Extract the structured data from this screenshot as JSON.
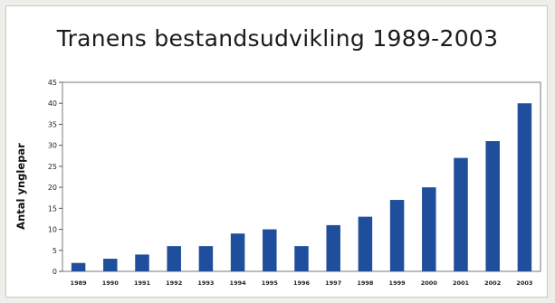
{
  "chart_data": {
    "type": "bar",
    "title": "Tranens bestandsudvikling 1989-2003",
    "xlabel": "",
    "ylabel": "Antal ynglepar",
    "categories": [
      "1989",
      "1990",
      "1991",
      "1992",
      "1993",
      "1994",
      "1995",
      "1996",
      "1997",
      "1998",
      "1999",
      "2000",
      "2001",
      "2002",
      "2003"
    ],
    "values": [
      2,
      3,
      4,
      6,
      6,
      9,
      10,
      6,
      11,
      13,
      17,
      20,
      27,
      31,
      40
    ],
    "ylim": [
      0,
      45
    ],
    "yticks": [
      0,
      5,
      10,
      15,
      20,
      25,
      30,
      35,
      40,
      45
    ],
    "grid": false,
    "bar_color": "#1f4e9c"
  }
}
